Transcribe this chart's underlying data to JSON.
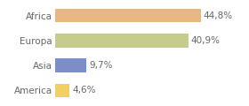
{
  "categories": [
    "Africa",
    "Europa",
    "Asia",
    "America"
  ],
  "values": [
    44.8,
    40.9,
    9.7,
    4.6
  ],
  "labels": [
    "44,8%",
    "40,9%",
    "9,7%",
    "4,6%"
  ],
  "bar_colors": [
    "#e8b882",
    "#c5cc8e",
    "#7b8ec8",
    "#f0d060"
  ],
  "background_color": "#ffffff",
  "xlim": [
    0,
    58
  ],
  "bar_height": 0.55,
  "label_fontsize": 7.5,
  "tick_fontsize": 7.5,
  "label_color": "#666666",
  "tick_color": "#666666"
}
